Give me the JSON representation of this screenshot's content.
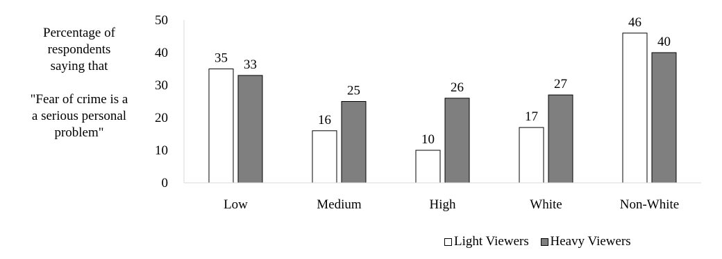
{
  "chart_data": {
    "type": "bar",
    "title": "",
    "ylabel_lines": [
      "Percentage of",
      "respondents",
      "saying that",
      "",
      "\"Fear of crime is a",
      "a serious personal",
      "problem\""
    ],
    "xlabel": "",
    "categories": [
      "Low",
      "Medium",
      "High",
      "White",
      "Non-White"
    ],
    "ylim": [
      0,
      50
    ],
    "yticks": [
      0,
      10,
      20,
      30,
      40,
      50
    ],
    "grid": false,
    "legend_position": "bottom",
    "series": [
      {
        "name": "Light Viewers",
        "color": "#ffffff",
        "values": [
          35,
          16,
          10,
          17,
          46
        ]
      },
      {
        "name": "Heavy Viewers",
        "color": "#7f7f7f",
        "values": [
          33,
          25,
          26,
          27,
          40
        ]
      }
    ]
  }
}
